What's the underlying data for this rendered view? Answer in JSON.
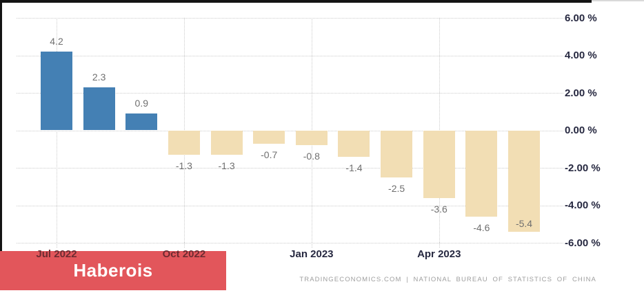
{
  "chart_data": {
    "type": "bar",
    "values": [
      4.2,
      2.3,
      0.9,
      -1.3,
      -1.3,
      -0.7,
      -0.8,
      -1.4,
      -2.5,
      -3.6,
      -4.6,
      -5.4
    ],
    "bar_value_labels": [
      "4.2",
      "2.3",
      "0.9",
      "-1.3",
      "-1.3",
      "-0.7",
      "-0.8",
      "-1.4",
      "-2.5",
      "-3.6",
      "-4.6",
      "-5.4"
    ],
    "x_tick_labels": [
      "Jul 2022",
      "Oct 2022",
      "Jan 2023",
      "Apr 2023"
    ],
    "x_tick_bar_indices": [
      0,
      3,
      6,
      9
    ],
    "y_tick_labels": [
      "6.00 %",
      "4.00 %",
      "2.00 %",
      "0.00 %",
      "-2.00 %",
      "-4.00 %",
      "-6.00 %"
    ],
    "ylim": [
      -6,
      6
    ],
    "grid": true,
    "legend": "none",
    "y_axis_side": "right",
    "title": "",
    "xlabel": "",
    "ylabel": ""
  },
  "colors": {
    "positive_bar": "#4480b4",
    "negative_bar": "#f2deb4",
    "grid": "#cbcbcb",
    "axis_label": "#262840",
    "value_label": "#6f6f6f",
    "overlapped_label": "#6d2b31",
    "watermark_bg": "#e2565b",
    "watermark_text": "#ffffff",
    "attribution_text": "#9e9e9e"
  },
  "watermark": {
    "text": "Haberois"
  },
  "attribution": {
    "text": "TRADINGECONOMICS.COM | NATIONAL BUREAU OF STATISTICS OF CHINA"
  }
}
